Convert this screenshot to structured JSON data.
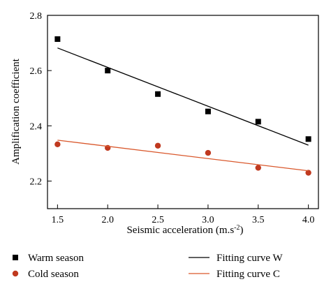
{
  "chart_data": {
    "type": "scatter",
    "xlabel": "Seismic acceleration (m.s",
    "xlabel_sup": "-2",
    "xlabel_end": ")",
    "ylabel": "Amplification coefficient",
    "xlim": [
      1.4,
      4.1
    ],
    "ylim": [
      2.1,
      2.8
    ],
    "xticks": [
      1.5,
      2.0,
      2.5,
      3.0,
      3.5,
      4.0
    ],
    "xtick_labels": [
      "1.5",
      "2.0",
      "2.5",
      "3.0",
      "3.5",
      "4.0"
    ],
    "yticks": [
      2.2,
      2.4,
      2.6,
      2.8
    ],
    "ytick_labels": [
      "2.2",
      "2.4",
      "2.6",
      "2.8"
    ],
    "legend_position": "bottom",
    "series": [
      {
        "name": "Warm season",
        "kind": "points",
        "marker": "square",
        "color": "#000000",
        "x": [
          1.5,
          2.0,
          2.5,
          3.0,
          3.5,
          4.0
        ],
        "y": [
          2.714,
          2.6,
          2.515,
          2.452,
          2.415,
          2.352
        ]
      },
      {
        "name": "Cold season",
        "kind": "points",
        "marker": "circle",
        "color": "#c0391f",
        "x": [
          1.5,
          2.0,
          2.5,
          3.0,
          3.5,
          4.0
        ],
        "y": [
          2.333,
          2.32,
          2.328,
          2.302,
          2.248,
          2.23
        ]
      },
      {
        "name": "Fitting curve W",
        "kind": "line",
        "color": "#000000",
        "x": [
          1.5,
          4.0
        ],
        "y": [
          2.682,
          2.33
        ]
      },
      {
        "name": "Fitting curve C",
        "kind": "line",
        "color": "#d9572b",
        "x": [
          1.5,
          4.0
        ],
        "y": [
          2.348,
          2.237
        ]
      }
    ]
  }
}
